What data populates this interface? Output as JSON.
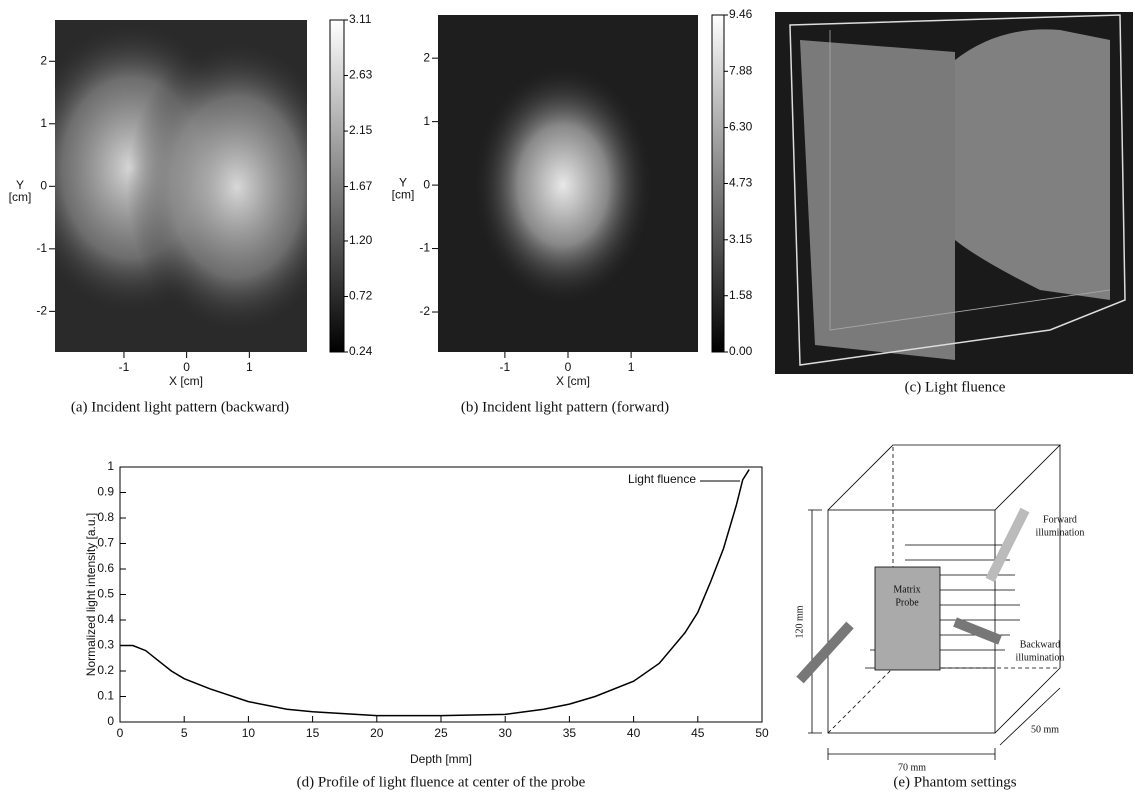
{
  "chart_data": [
    {
      "type": "heatmap",
      "caption": "(a) Incident light pattern (backward)",
      "xlabel": "X [cm]",
      "ylabel": [
        "Y",
        "[cm]"
      ],
      "xlim": [
        -2.1,
        1.92
      ],
      "ylim": [
        -2.65,
        2.66
      ],
      "xticks": [
        -1,
        0,
        1
      ],
      "yticks": [
        -2,
        -1,
        0,
        1,
        2
      ],
      "clim": [
        0.24,
        3.11
      ],
      "cticks": [
        0.24,
        0.72,
        {
          "value": 1.2,
          "label": "1.20"
        },
        1.67,
        2.15,
        2.63,
        3.11
      ]
    },
    {
      "type": "heatmap",
      "caption": "(b) Incident light pattern (forward)",
      "xlabel": "X [cm]",
      "ylabel": [
        "Y",
        "[cm]"
      ],
      "xlim": [
        -2.06,
        2.06
      ],
      "ylim": [
        -2.63,
        2.68
      ],
      "xticks": [
        -1,
        0,
        1
      ],
      "yticks": [
        -2,
        -1,
        0,
        1,
        2
      ],
      "clim": [
        0,
        9.46
      ],
      "cticks": [
        {
          "value": 0,
          "label": "0.00"
        },
        1.58,
        3.15,
        4.73,
        {
          "value": 6.3,
          "label": "6.30"
        },
        7.88,
        9.46
      ]
    },
    {
      "type": "line",
      "caption": "(d) Profile of light fluence at center of the probe",
      "xlabel": "Depth [mm]",
      "ylabel": "Normalized light intensity [a.u.]",
      "xlim": [
        0,
        50
      ],
      "ylim": [
        0,
        1
      ],
      "xticks": [
        0,
        5,
        10,
        15,
        20,
        25,
        30,
        35,
        40,
        45,
        50
      ],
      "yticks": [
        0,
        0.1,
        0.2,
        0.3,
        0.4,
        0.5,
        0.6,
        0.7,
        0.8,
        0.9,
        1
      ],
      "x": [
        0,
        1,
        2,
        3,
        4,
        5,
        7,
        10,
        13,
        15,
        20,
        25,
        30,
        33,
        35,
        37,
        40,
        42,
        44,
        45,
        46,
        47,
        48,
        48.5,
        49
      ],
      "series": [
        {
          "name": "Light fluence",
          "color": "#000000",
          "values": [
            0.3,
            0.3,
            0.28,
            0.24,
            0.2,
            0.17,
            0.13,
            0.08,
            0.05,
            0.04,
            0.025,
            0.025,
            0.03,
            0.05,
            0.07,
            0.1,
            0.16,
            0.23,
            0.35,
            0.43,
            0.55,
            0.68,
            0.85,
            0.95,
            0.99
          ]
        }
      ]
    }
  ],
  "panel_c": {
    "caption": "(c) Light fluence"
  },
  "diagram": {
    "caption": "(e) Phantom settings",
    "probe": [
      "Matrix",
      "Probe"
    ],
    "forward": [
      "Forward",
      "illumination"
    ],
    "backward": [
      "Backward",
      "illumination"
    ],
    "height": "120 mm",
    "width": "70 mm",
    "depth": "50 mm"
  }
}
